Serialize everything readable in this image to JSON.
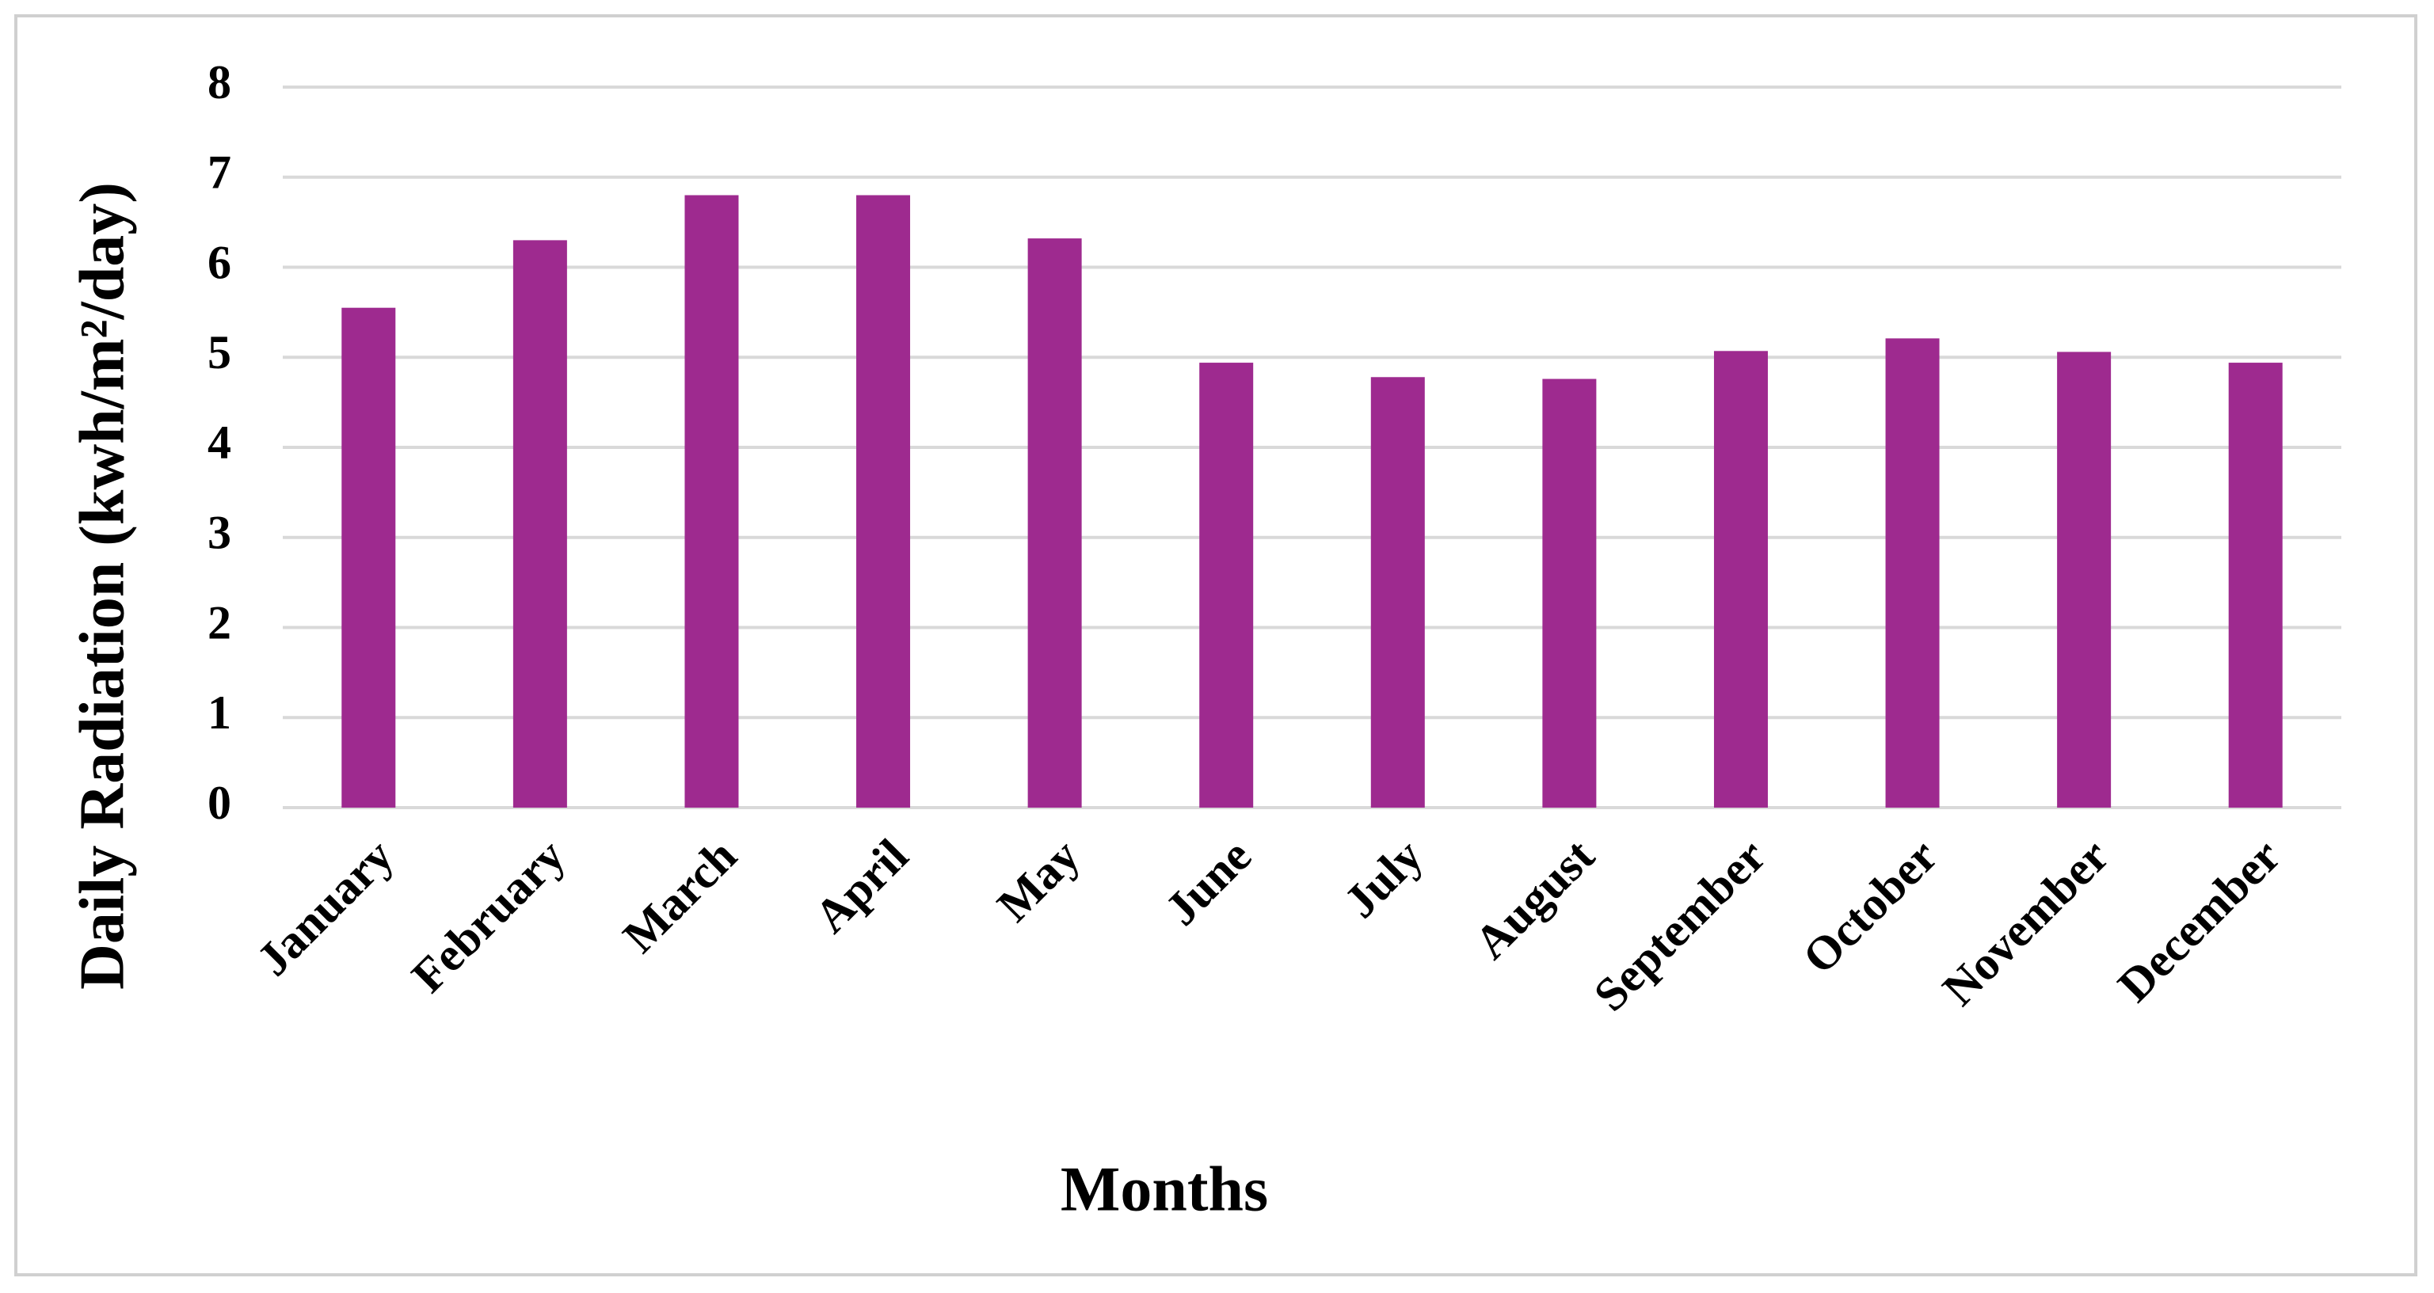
{
  "chart_data": {
    "type": "bar",
    "categories": [
      "January",
      "February",
      "March",
      "April",
      "May",
      "June",
      "July",
      "August",
      "September",
      "October",
      "November",
      "December"
    ],
    "values": [
      5.55,
      6.3,
      6.8,
      6.8,
      6.32,
      4.94,
      4.78,
      4.76,
      5.07,
      5.21,
      5.06,
      4.94
    ],
    "color": "#9e2a8f",
    "ylim": [
      0,
      8
    ],
    "yticks": [
      0,
      1,
      2,
      3,
      4,
      5,
      6,
      7,
      8
    ],
    "grid": true,
    "xlabel": "Months",
    "ylabel": "Daily Radiation (kwh/m²/day)"
  }
}
